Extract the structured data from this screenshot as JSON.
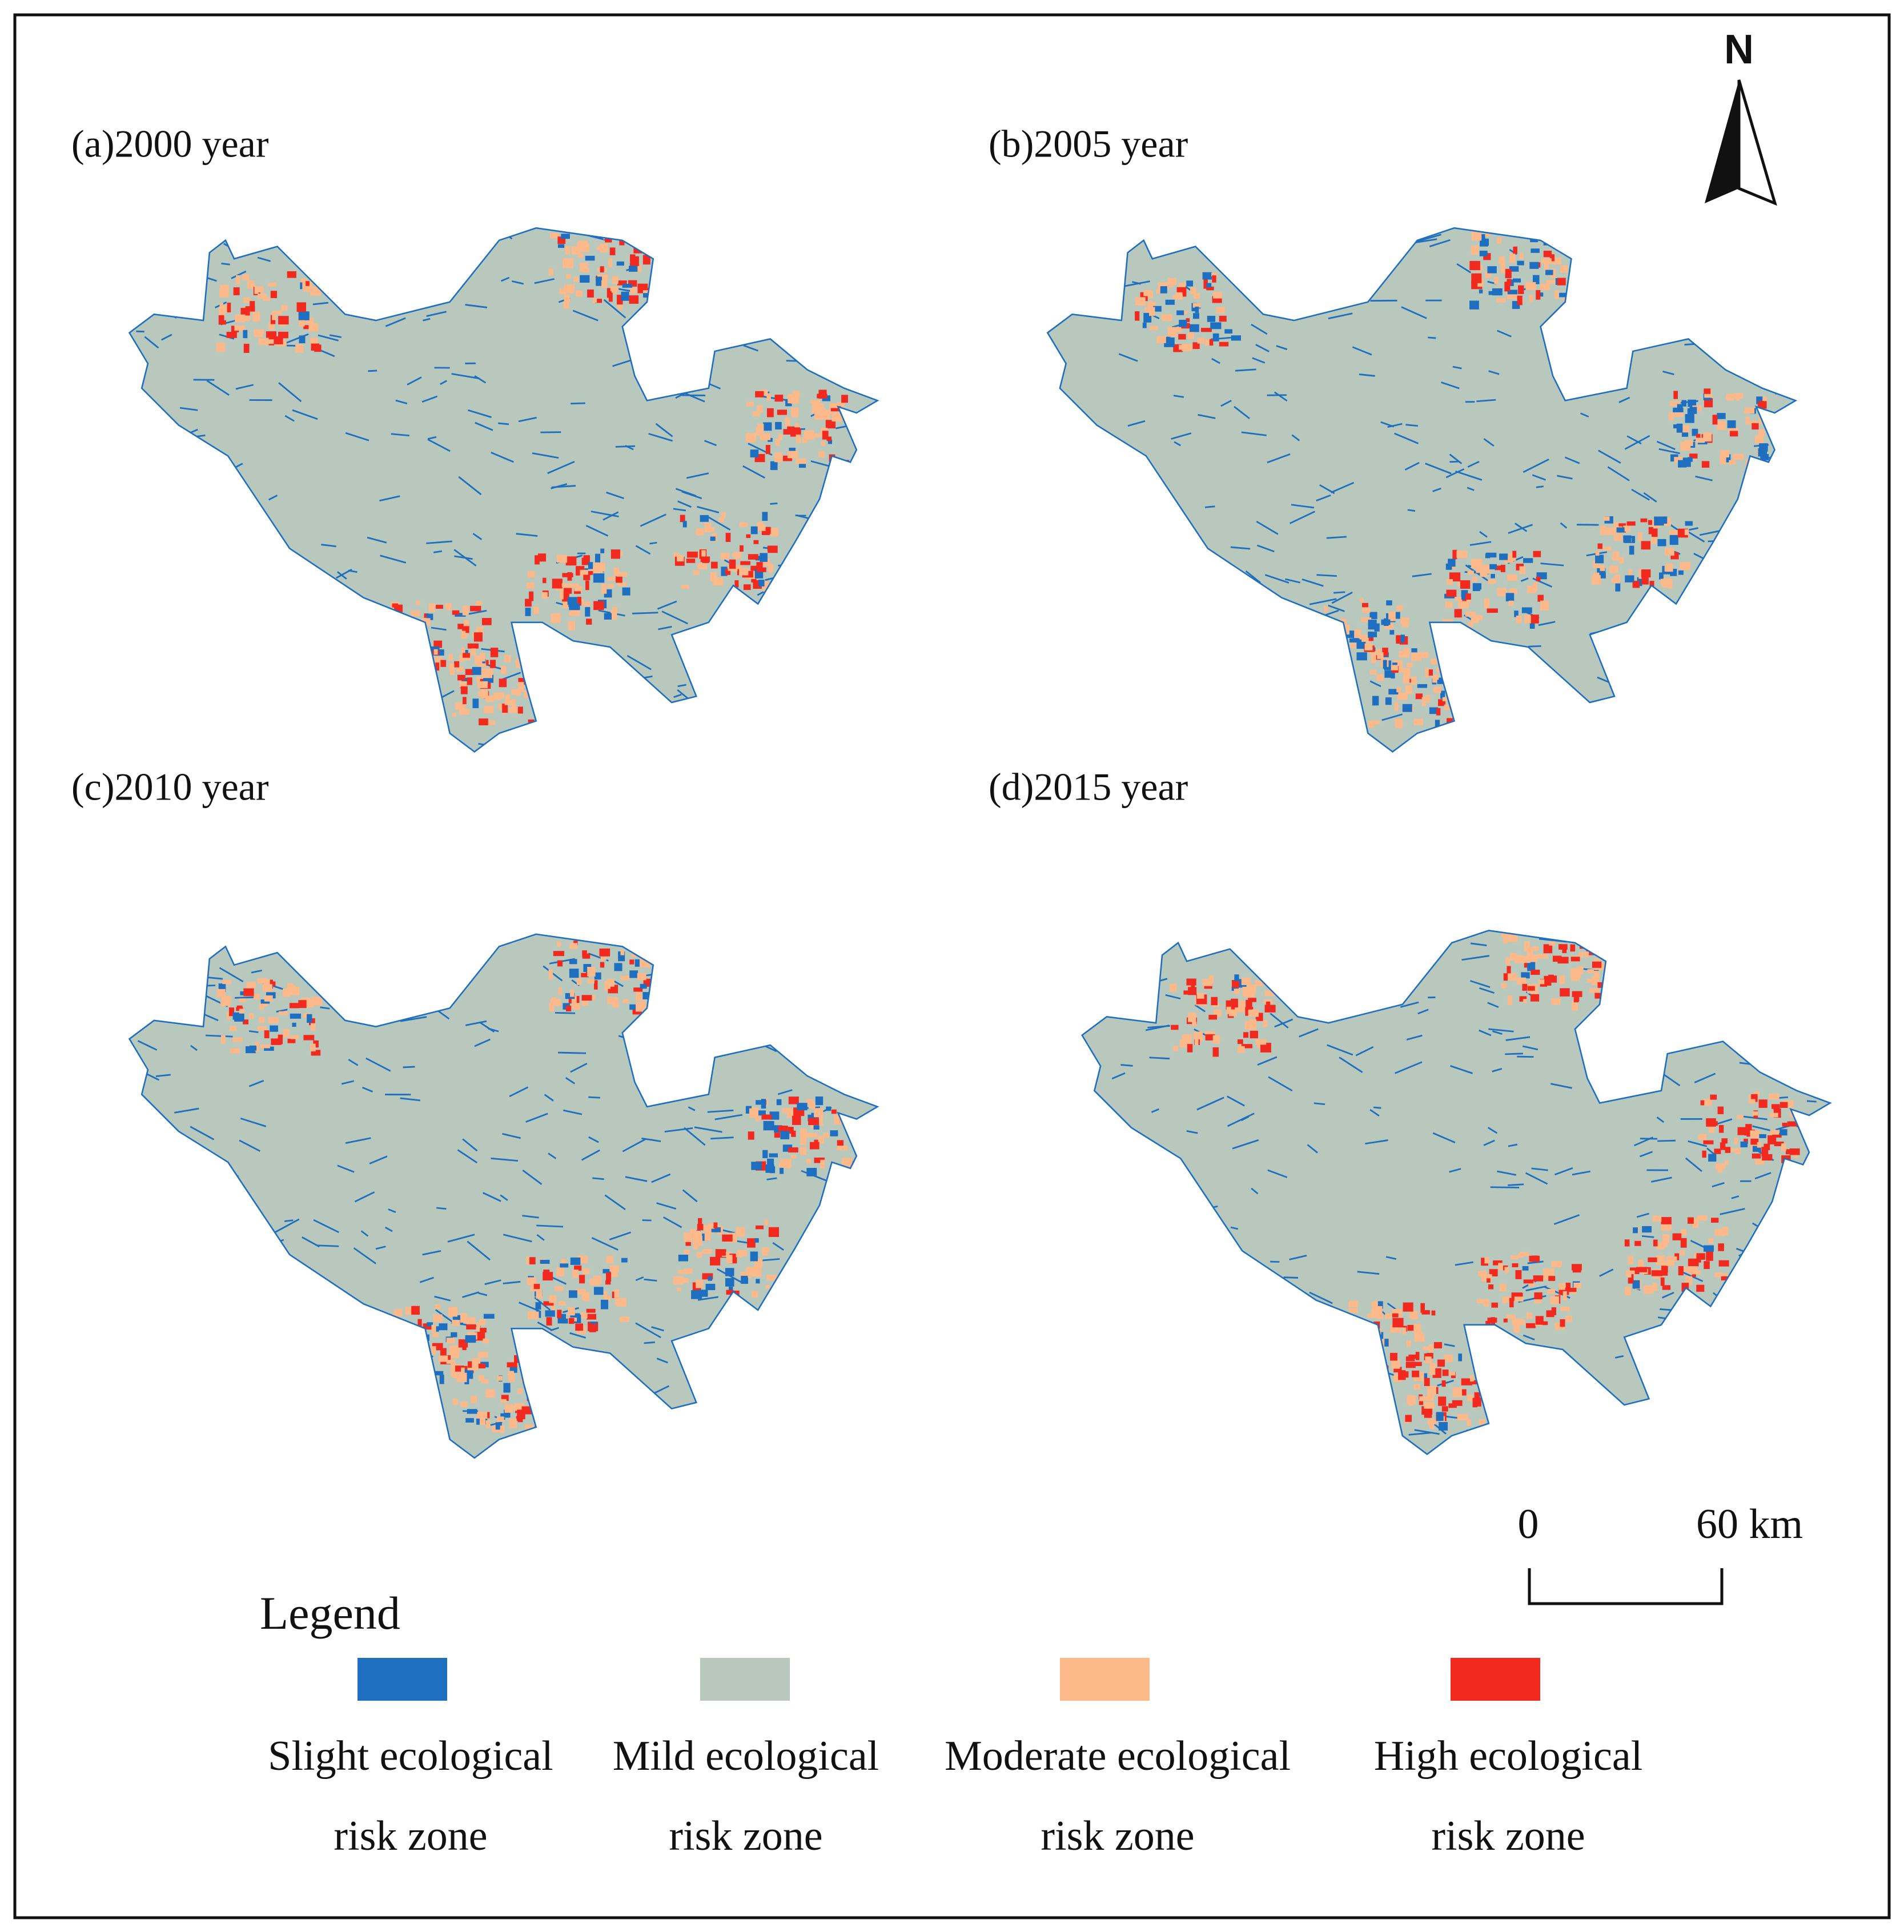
{
  "north": "N",
  "panels": [
    {
      "label": "(a)2000 year"
    },
    {
      "label": "(b)2005 year"
    },
    {
      "label": "(c)2010 year"
    },
    {
      "label": "(d)2015 year"
    }
  ],
  "scale_bar": {
    "start": "0",
    "end": "60 km"
  },
  "legend": {
    "title": "Legend",
    "items": [
      {
        "label_lines": [
          "Slight ecological",
          "risk zone"
        ],
        "color": "#1f6fc0"
      },
      {
        "label_lines": [
          "Mild ecological",
          "risk zone"
        ],
        "color": "#b8c8bc"
      },
      {
        "label_lines": [
          "Moderate ecological",
          "risk zone"
        ],
        "color": "#fdb98a"
      },
      {
        "label_lines": [
          "High ecological",
          "risk zone"
        ],
        "color": "#f2291e"
      }
    ]
  }
}
